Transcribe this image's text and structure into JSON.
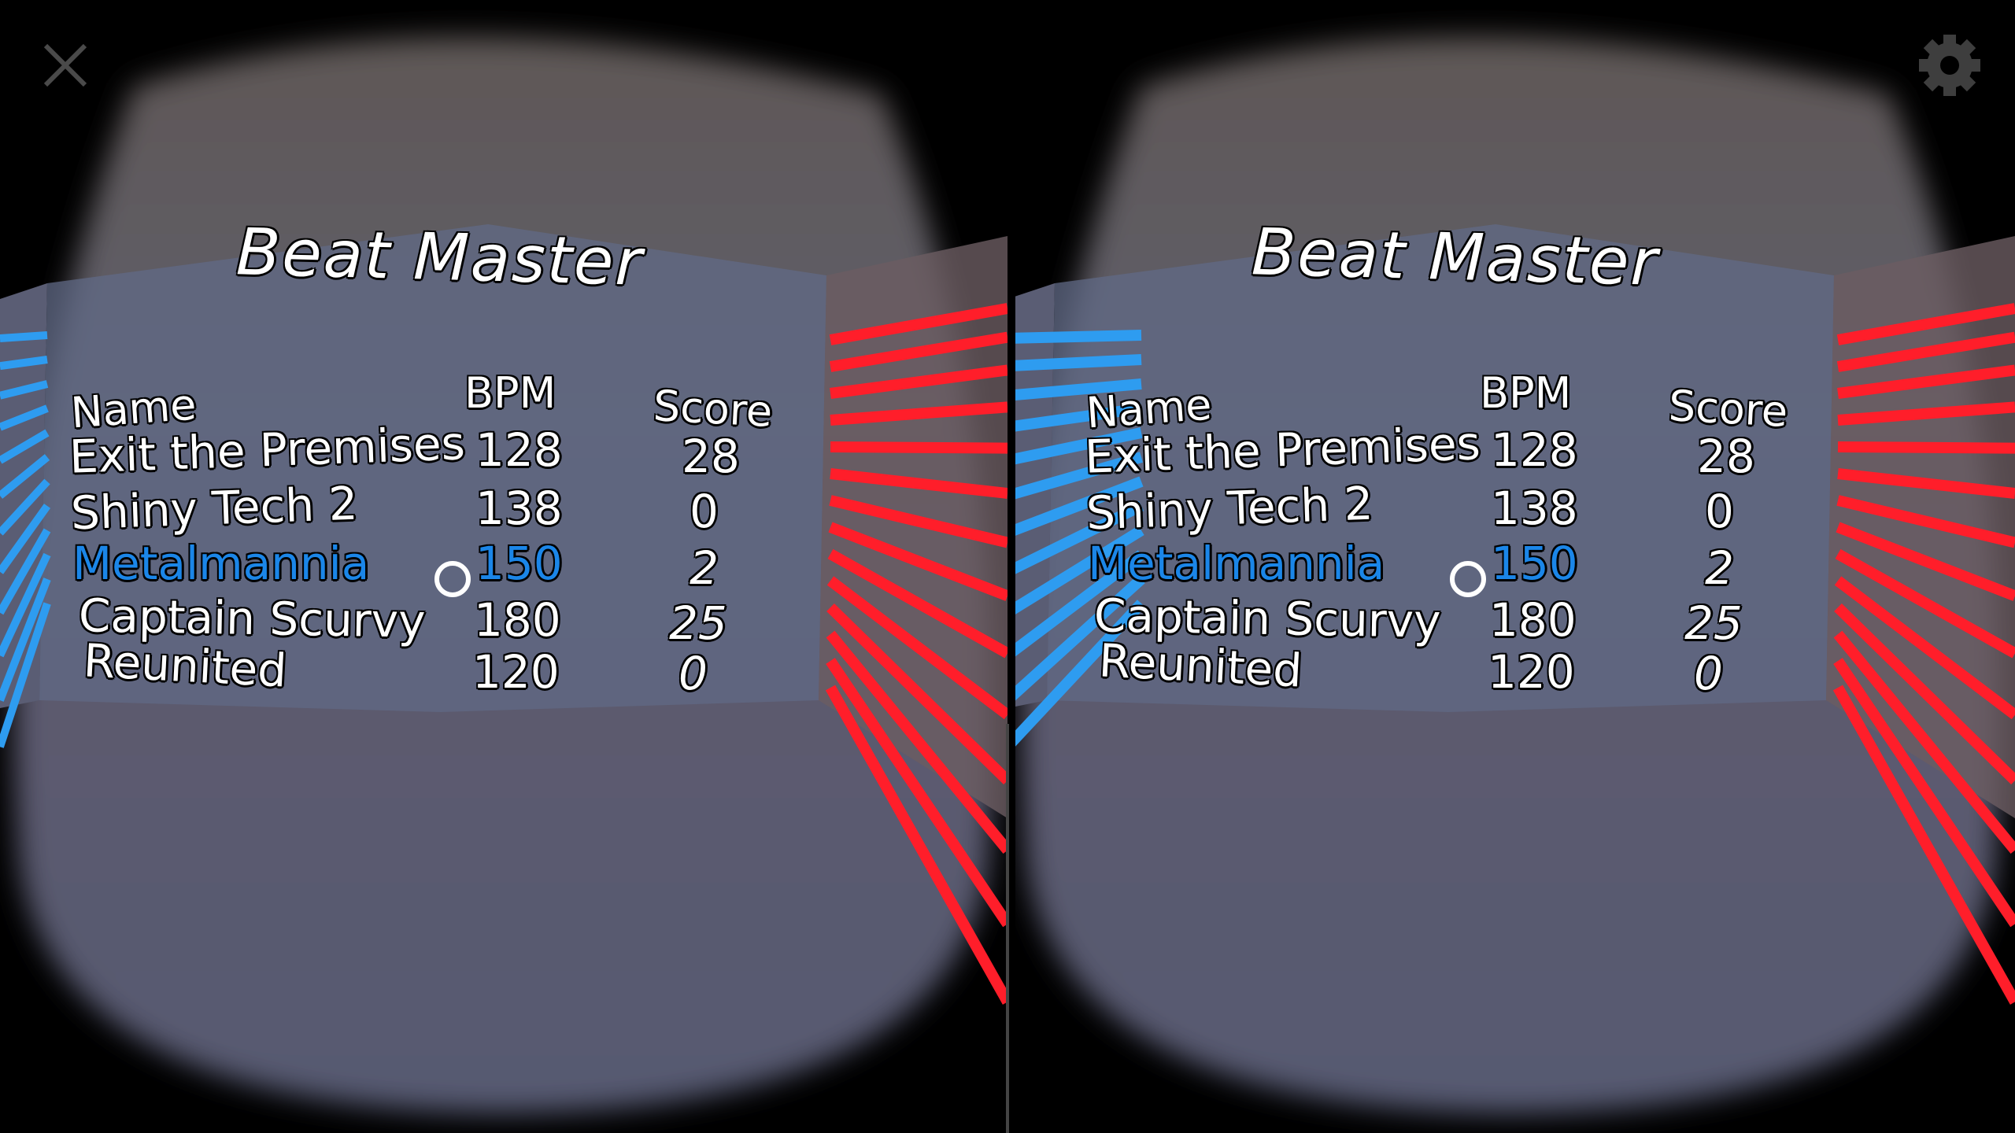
{
  "top_bar": {
    "close_icon": "close-icon",
    "settings_icon": "gear-icon"
  },
  "board": {
    "title": "Beat Master",
    "headers": {
      "name": "Name",
      "bpm": "BPM",
      "score": "Score"
    },
    "rows": [
      {
        "name": "Exit the Premises",
        "bpm": "128",
        "score": "28",
        "highlighted": false
      },
      {
        "name": "Shiny Tech 2",
        "bpm": "138",
        "score": "0",
        "highlighted": false
      },
      {
        "name": "Metalmannia",
        "bpm": "150",
        "score": "2",
        "highlighted": true
      },
      {
        "name": "Captain Scurvy",
        "bpm": "180",
        "score": "25",
        "highlighted": false
      },
      {
        "name": "Reunited",
        "bpm": "120",
        "score": "0",
        "highlighted": false
      }
    ]
  },
  "colors": {
    "highlight": "#1b86e8",
    "left_wall_stripes": "#2e9cf0",
    "right_wall_stripes": "#ff1e2a",
    "board_text": "#ffffff"
  },
  "view_mode": "stereo VR (two eyes)",
  "gaze_cursor": "ring-reticle"
}
